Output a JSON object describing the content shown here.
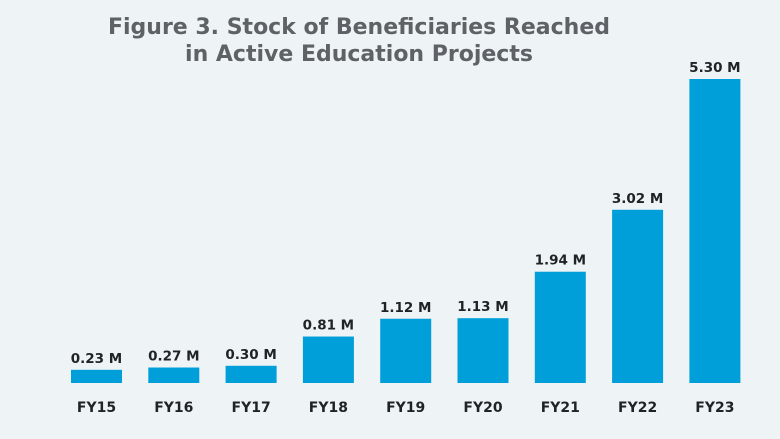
{
  "chart_data": {
    "type": "bar",
    "title": "Figure 3. Stock of Beneficiaries Reached in Active Education Projects",
    "title_lines": [
      "Figure 3. Stock of Beneficiaries Reached",
      "in Active Education Projects"
    ],
    "categories": [
      "FY15",
      "FY16",
      "FY17",
      "FY18",
      "FY19",
      "FY20",
      "FY21",
      "FY22",
      "FY23"
    ],
    "values": [
      0.23,
      0.27,
      0.3,
      0.81,
      1.12,
      1.13,
      1.94,
      3.02,
      5.3
    ],
    "data_labels": [
      "0.23 M",
      "0.27 M",
      "0.30 M",
      "0.81 M",
      "1.12 M",
      "1.13 M",
      "1.94 M",
      "3.02 M",
      "5.30 M"
    ],
    "unit": "M",
    "xlabel": "",
    "ylabel": "",
    "ylim": [
      0,
      5.3
    ],
    "grid": false,
    "legend": "none",
    "colors": {
      "bar": "#009fd9",
      "background": "#eef3f6",
      "title": "#5e6266"
    }
  }
}
